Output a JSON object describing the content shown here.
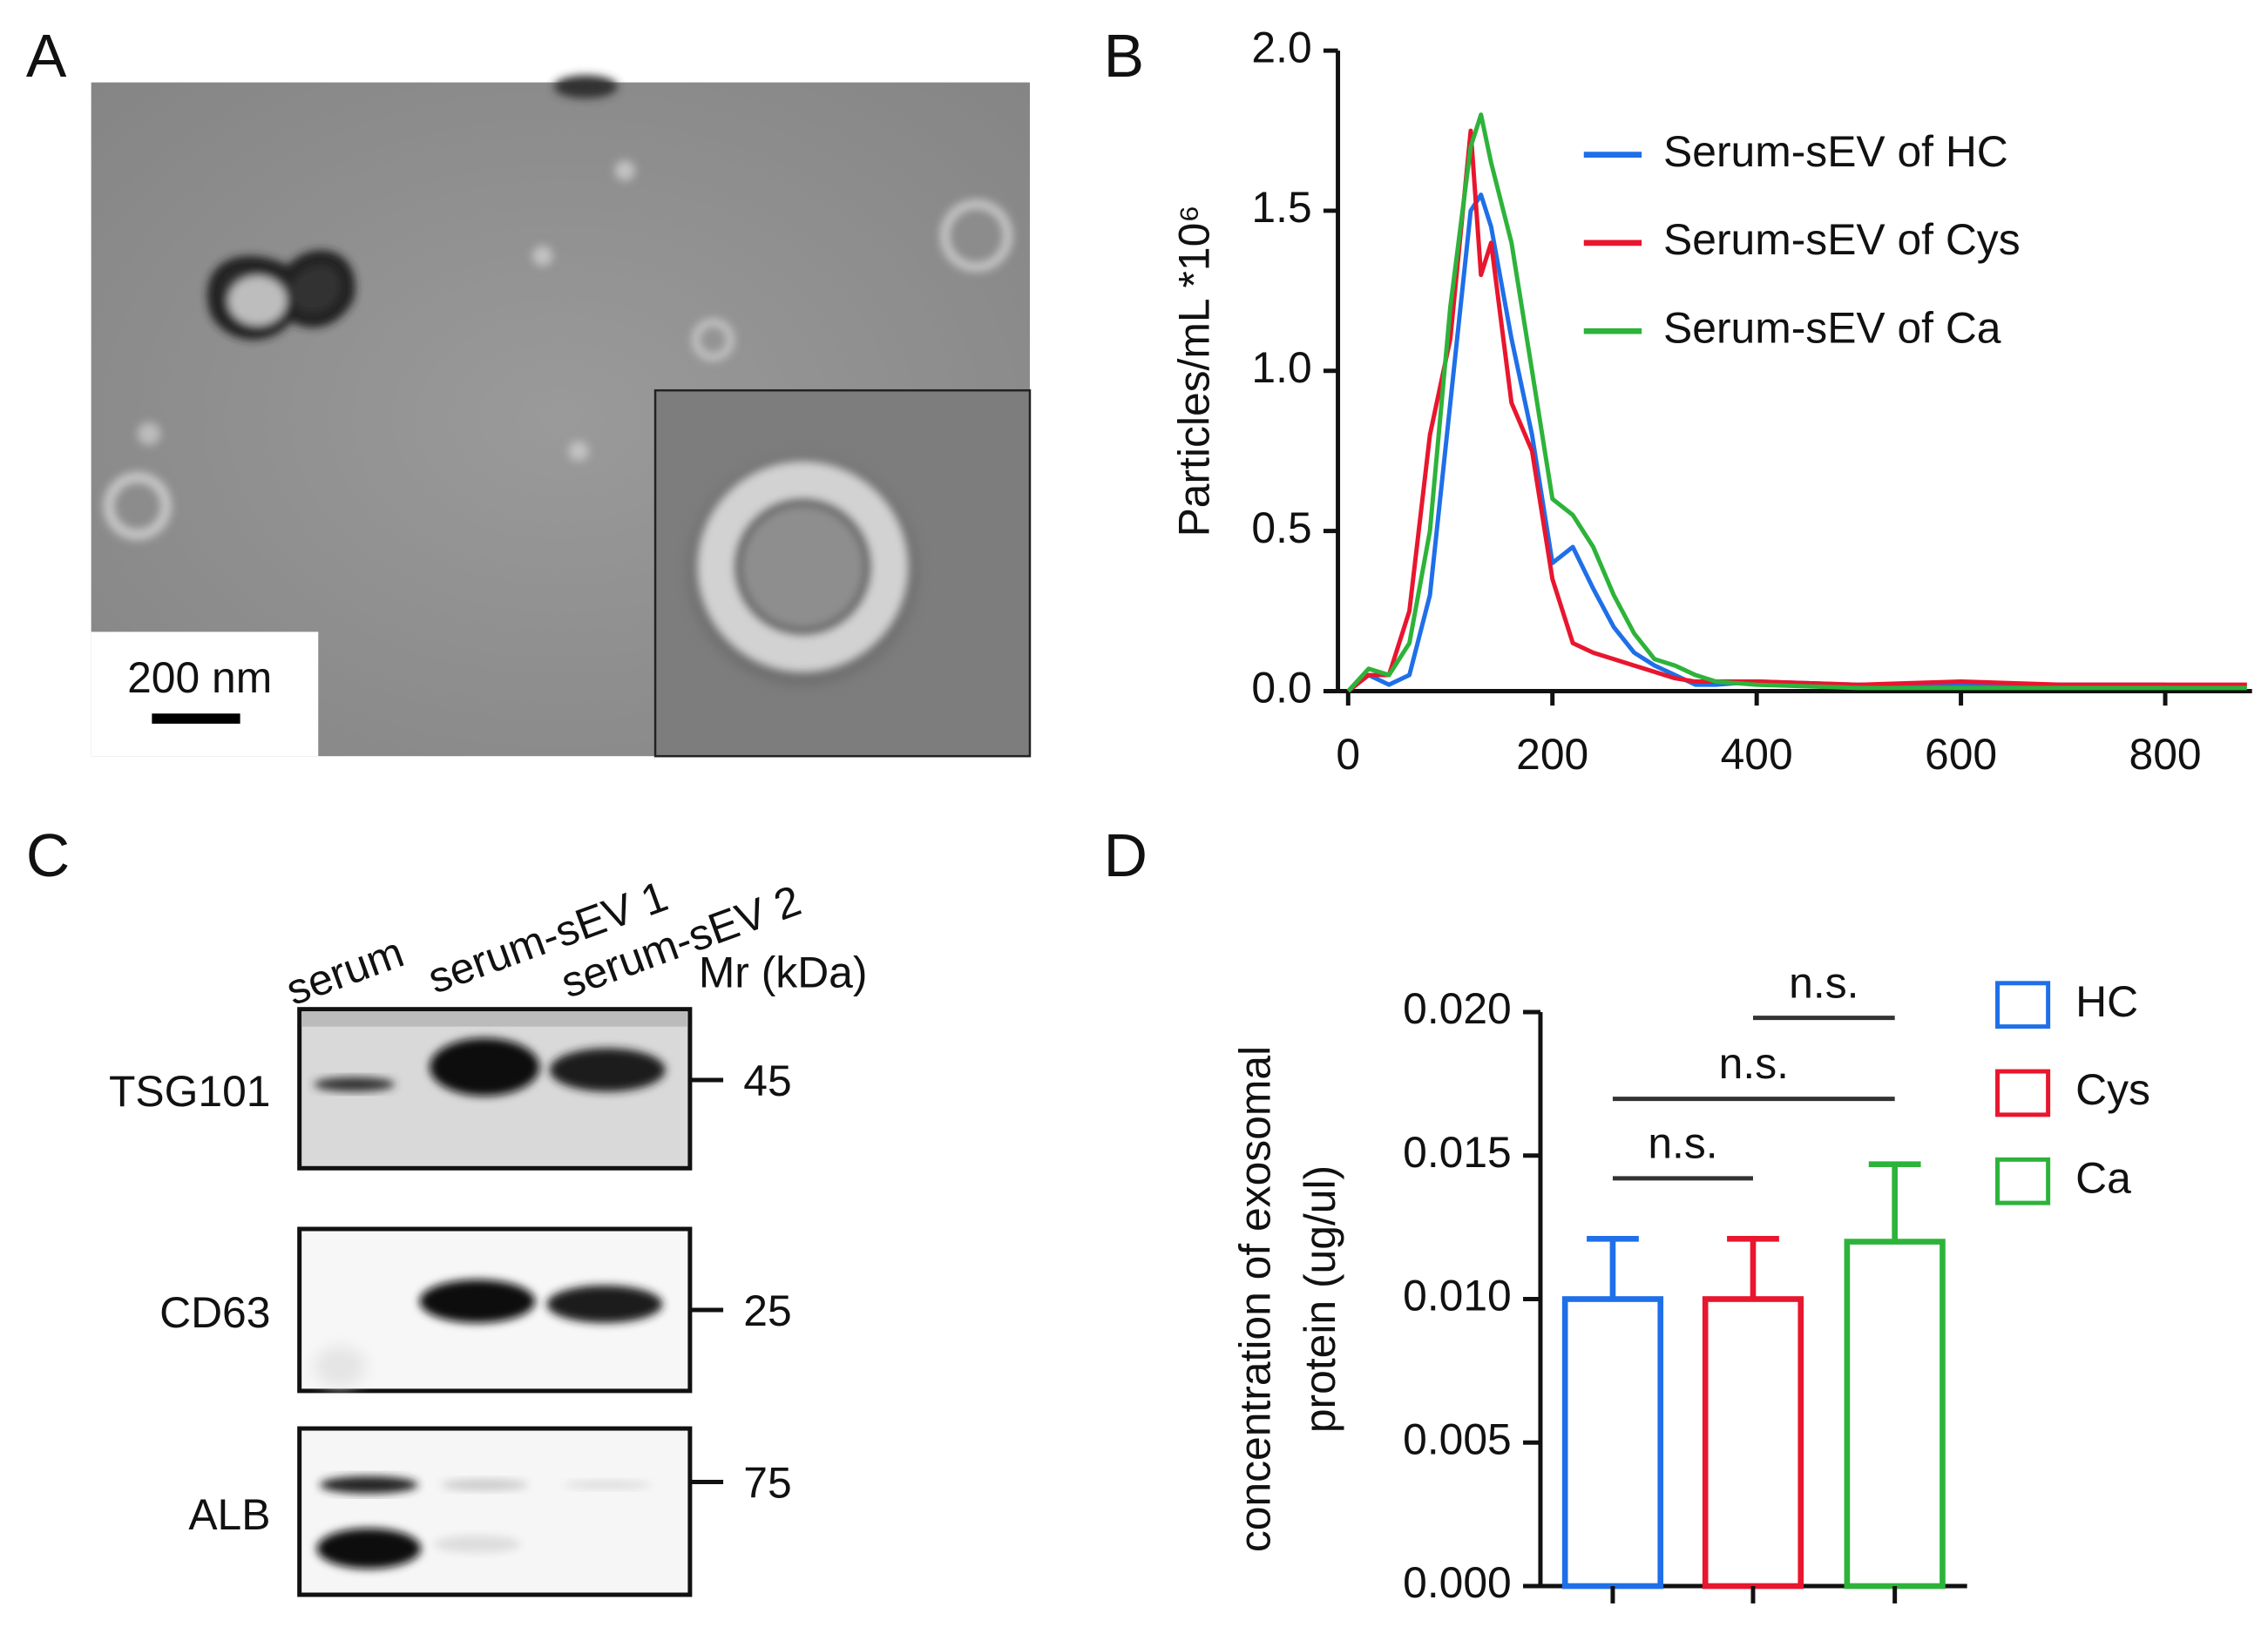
{
  "panels": [
    "A",
    "B",
    "C",
    "D"
  ],
  "micrograph": {
    "scale_bar": "200 nm"
  },
  "chart_data": [
    {
      "type": "line",
      "y_label": "Particles/mL *10⁶",
      "x": [
        0,
        20,
        40,
        60,
        80,
        100,
        120,
        130,
        140,
        160,
        180,
        200,
        220,
        240,
        260,
        280,
        300,
        320,
        340,
        360,
        400,
        500,
        600,
        700,
        800,
        880
      ],
      "series": [
        {
          "name": "Serum-sEV of HC",
          "color": "#1f6fe8",
          "values": [
            0.0,
            0.05,
            0.02,
            0.05,
            0.3,
            0.9,
            1.5,
            1.55,
            1.45,
            1.1,
            0.8,
            0.4,
            0.45,
            0.32,
            0.2,
            0.12,
            0.08,
            0.05,
            0.02,
            0.02,
            0.03,
            0.02,
            0.02,
            0.02,
            0.02,
            null
          ]
        },
        {
          "name": "Serum-sEV of Cys",
          "color": "#e8162e",
          "values": [
            0.0,
            0.05,
            0.05,
            0.25,
            0.8,
            1.1,
            1.75,
            1.3,
            1.4,
            0.9,
            0.75,
            0.35,
            0.15,
            0.12,
            0.1,
            0.08,
            0.06,
            0.04,
            0.03,
            0.03,
            0.03,
            0.02,
            0.03,
            0.02,
            0.02,
            0.02
          ]
        },
        {
          "name": "Serum-sEV of Ca",
          "color": "#2db33a",
          "values": [
            0.0,
            0.07,
            0.05,
            0.15,
            0.5,
            1.2,
            1.7,
            1.8,
            1.65,
            1.4,
            1.0,
            0.6,
            0.55,
            0.45,
            0.3,
            0.18,
            0.1,
            0.08,
            0.05,
            0.03,
            0.02,
            0.01,
            0.01,
            0.01,
            0.01,
            0.01
          ]
        }
      ],
      "xlim": [
        -10,
        885
      ],
      "ylim": [
        0,
        2
      ],
      "xticks": [
        0,
        200,
        400,
        600,
        800
      ],
      "yticks": [
        {
          "value": 0,
          "label": "0.0"
        },
        {
          "value": 0.5,
          "label": "0.5"
        },
        {
          "value": 1,
          "label": "1.0"
        },
        {
          "value": 1.5,
          "label": "1.5"
        },
        {
          "value": 2,
          "label": "2.0"
        }
      ],
      "legend": "upper right"
    },
    {
      "type": "bar",
      "y_label": [
        "concentration of exosomal",
        "protein (ug/ul)"
      ],
      "categories": [
        "HC",
        "Cys",
        "Ca"
      ],
      "colors": [
        "#1f6fe8",
        "#e8162e",
        "#2db33a"
      ],
      "values": [
        0.01,
        0.01,
        0.012
      ],
      "errors": [
        0.0021,
        0.0021,
        0.0027
      ],
      "ylim": [
        0,
        0.02
      ],
      "yticks": [
        {
          "value": 0,
          "label": "0.000"
        },
        {
          "value": 0.005,
          "label": "0.005"
        },
        {
          "value": 0.01,
          "label": "0.010"
        },
        {
          "value": 0.015,
          "label": "0.015"
        },
        {
          "value": 0.02,
          "label": "0.020"
        }
      ],
      "annotations": [
        "n.s.",
        "n.s.",
        "n.s."
      ],
      "legend": "right"
    }
  ],
  "blot": {
    "lanes": [
      "serum",
      "serum-sEV 1",
      "serum-sEV 2"
    ],
    "marker_title": "Mr (kDa)",
    "rows": [
      {
        "name": "TSG101",
        "marker": 45
      },
      {
        "name": "CD63",
        "marker": 25
      },
      {
        "name": "ALB",
        "marker": 75
      }
    ]
  }
}
